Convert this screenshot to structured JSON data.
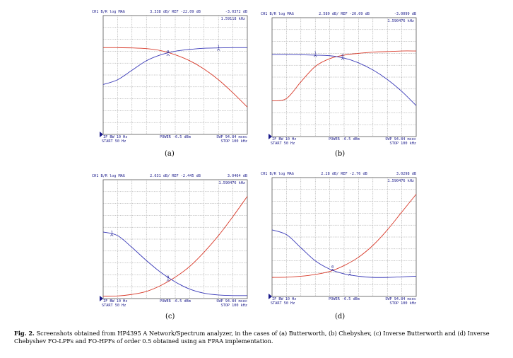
{
  "caption": {
    "fig": "Fig. 2.",
    "text": "Screenshots obtained from HP4395 A Network/Spectrum analyzer, in the cases of (a) Butterworth, (b) Chebyshev, (c) Inverse Butterworth and (d) Inverse Chebyshev FO-LPFs and FO-HPFs of order 0.5 obtained using an FPAA implementation."
  },
  "colors": {
    "trace1": "#d83a2a",
    "trace2": "#3a3ab8",
    "grid": "#8c8c8c",
    "text": "#1a1a8a"
  },
  "chart_data": [
    {
      "type": "line",
      "panel_label": "(a)",
      "header_left": "CH1 B/R  log MAG",
      "header_scale": "3.338 dB/ REF -22.09 dB",
      "header_right": "-3.0372 dB",
      "marker_freq": "1.59118 kHz",
      "footer_left1": "IF BW 10 Hz",
      "footer_left2": "START  50 Hz",
      "footer_center": "POWER -6.5 dBm",
      "footer_right1": "SWP  94.84 msec",
      "footer_right2": "STOP  100 kHz",
      "xlim": [
        0,
        10
      ],
      "ylim": [
        0,
        10
      ],
      "series": [
        {
          "x": [
            0,
            1,
            2,
            3,
            4,
            5,
            6,
            7,
            8,
            9,
            10
          ],
          "values": [
            7.3,
            7.3,
            7.28,
            7.22,
            7.05,
            6.7,
            6.2,
            5.5,
            4.6,
            3.5,
            2.3
          ]
        },
        {
          "x": [
            0,
            1,
            2,
            3,
            4,
            5,
            6,
            7,
            8,
            9,
            10
          ],
          "values": [
            4.2,
            4.6,
            5.4,
            6.2,
            6.7,
            7.0,
            7.15,
            7.25,
            7.28,
            7.3,
            7.3
          ]
        }
      ],
      "markers": [
        {
          "label": "0",
          "x": 4.5,
          "y": 6.75
        },
        {
          "label": "1",
          "x": 8.0,
          "y": 7.2
        }
      ]
    },
    {
      "type": "line",
      "panel_label": "(b)",
      "header_left": "CH1 B/R  log MAG",
      "header_scale": "2.589 dB/ REF -20.09 dB",
      "header_right": "-3.0099 dB",
      "marker_freq": "1.590476 kHz",
      "footer_left1": "IF BW 10 Hz",
      "footer_left2": "START  50 Hz",
      "footer_center": "POWER -6.5 dBm",
      "footer_right1": "SWP  94.84 msec",
      "footer_right2": "STOP  100 kHz",
      "xlim": [
        0,
        10
      ],
      "ylim": [
        0,
        10
      ],
      "series": [
        {
          "x": [
            0,
            1,
            2,
            3,
            4,
            5,
            6,
            7,
            8,
            9,
            10
          ],
          "values": [
            3.0,
            3.2,
            4.6,
            5.9,
            6.55,
            6.85,
            7.0,
            7.1,
            7.15,
            7.2,
            7.2
          ]
        },
        {
          "x": [
            0,
            1,
            2,
            3,
            4,
            5,
            6,
            7,
            8,
            9,
            10
          ],
          "values": [
            6.9,
            6.9,
            6.88,
            6.85,
            6.8,
            6.6,
            6.2,
            5.6,
            4.8,
            3.8,
            2.6
          ]
        }
      ],
      "markers": [
        {
          "label": "0",
          "x": 4.9,
          "y": 6.6
        },
        {
          "label": "1",
          "x": 3.0,
          "y": 6.85
        }
      ]
    },
    {
      "type": "line",
      "panel_label": "(c)",
      "header_left": "CH1 B/R  log MAG",
      "header_scale": "2.631 dB/ REF -2.445 dB",
      "header_right": "3.0464 dB",
      "marker_freq": "1.590476 kHz",
      "footer_left1": "IF BW 10 Hz",
      "footer_left2": "START  50 Hz",
      "footer_center": "POWER -6.5 dBm",
      "footer_right1": "SWP  94.84 msec",
      "footer_right2": "STOP  100 kHz",
      "xlim": [
        0,
        10
      ],
      "ylim": [
        0,
        10
      ],
      "series": [
        {
          "x": [
            0,
            1,
            2,
            3,
            4,
            5,
            6,
            7,
            8,
            9,
            10
          ],
          "values": [
            0.2,
            0.22,
            0.35,
            0.6,
            1.1,
            1.8,
            2.7,
            3.9,
            5.3,
            6.9,
            8.6
          ]
        },
        {
          "x": [
            0,
            1,
            2,
            3,
            4,
            5,
            6,
            7,
            8,
            9,
            10
          ],
          "values": [
            5.6,
            5.3,
            4.3,
            3.2,
            2.2,
            1.4,
            0.8,
            0.45,
            0.3,
            0.25,
            0.25
          ]
        }
      ],
      "markers": [
        {
          "label": "0",
          "x": 4.5,
          "y": 1.6
        },
        {
          "label": "1",
          "x": 0.6,
          "y": 5.4
        }
      ]
    },
    {
      "type": "line",
      "panel_label": "(d)",
      "header_left": "CH1 B/R  log MAG",
      "header_scale": "2.28 dB/ REF -2.76 dB",
      "header_right": "3.0298 dB",
      "marker_freq": "1.590476 kHz",
      "footer_left1": "IF BW 10 Hz",
      "footer_left2": "START  50 Hz",
      "footer_center": "POWER -6.5 dBm",
      "footer_right1": "SWP  94.84 msec",
      "footer_right2": "STOP  100 kHz",
      "xlim": [
        0,
        10
      ],
      "ylim": [
        0,
        10
      ],
      "series": [
        {
          "x": [
            0,
            1,
            2,
            3,
            4,
            5,
            6,
            7,
            8,
            9,
            10
          ],
          "values": [
            1.6,
            1.62,
            1.7,
            1.85,
            2.1,
            2.6,
            3.3,
            4.3,
            5.6,
            7.1,
            8.6
          ]
        },
        {
          "x": [
            0,
            1,
            2,
            3,
            4,
            5,
            6,
            7,
            8,
            9,
            10
          ],
          "values": [
            5.6,
            5.2,
            4.1,
            3.0,
            2.3,
            1.9,
            1.7,
            1.6,
            1.6,
            1.65,
            1.7
          ]
        }
      ],
      "markers": [
        {
          "label": "0",
          "x": 4.2,
          "y": 2.3
        },
        {
          "label": "1",
          "x": 5.4,
          "y": 1.9
        }
      ]
    }
  ]
}
